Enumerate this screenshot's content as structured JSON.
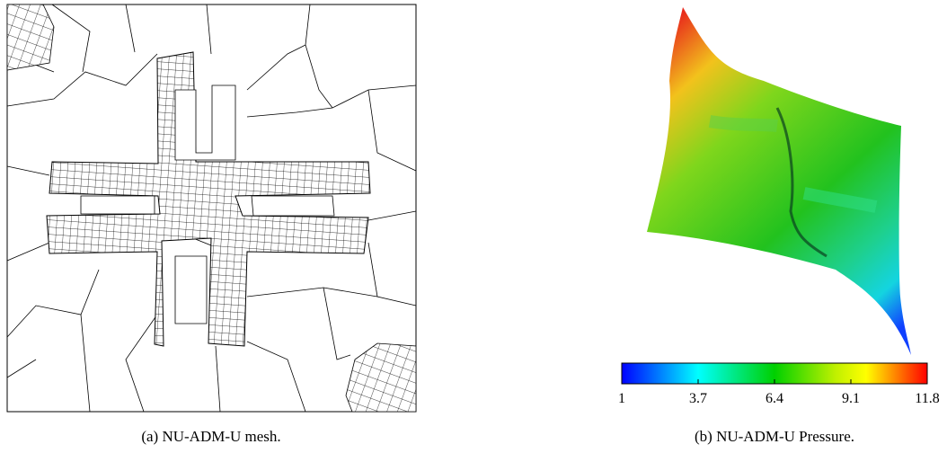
{
  "figure": {
    "panels": [
      {
        "caption": "(a) NU-ADM-U mesh."
      },
      {
        "caption": "(b) NU-ADM-U Pressure."
      }
    ],
    "colorbar": {
      "lim": [
        1,
        11.8
      ],
      "ticks": [
        1,
        3.7,
        6.4,
        9.1,
        11.8
      ]
    }
  }
}
